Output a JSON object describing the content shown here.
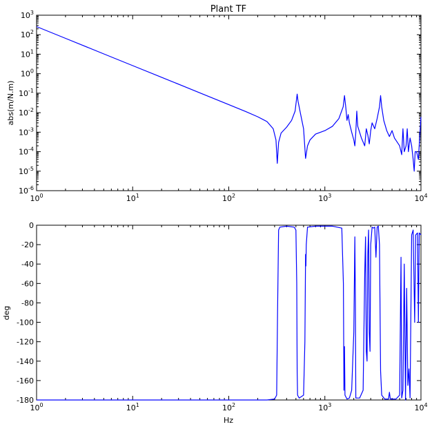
{
  "chart_data": [
    {
      "type": "line",
      "title": "Plant TF",
      "xlabel": "",
      "ylabel": "abs(m/N.m)",
      "xscale": "log",
      "yscale": "log",
      "xlim": [
        1,
        10000
      ],
      "ylim": [
        1e-06,
        1000
      ],
      "x_ticks": [
        {
          "value": 1,
          "base": "10",
          "exp": "0"
        },
        {
          "value": 10,
          "base": "10",
          "exp": "1"
        },
        {
          "value": 100,
          "base": "10",
          "exp": "2"
        },
        {
          "value": 1000,
          "base": "10",
          "exp": "3"
        },
        {
          "value": 10000,
          "base": "10",
          "exp": "4"
        }
      ],
      "y_ticks": [
        {
          "value": 1e-06,
          "base": "10",
          "exp": "-6"
        },
        {
          "value": 1e-05,
          "base": "10",
          "exp": "-5"
        },
        {
          "value": 0.0001,
          "base": "10",
          "exp": "-4"
        },
        {
          "value": 0.001,
          "base": "10",
          "exp": "-3"
        },
        {
          "value": 0.01,
          "base": "10",
          "exp": "-2"
        },
        {
          "value": 0.1,
          "base": "10",
          "exp": "-1"
        },
        {
          "value": 1,
          "base": "10",
          "exp": "0"
        },
        {
          "value": 10,
          "base": "10",
          "exp": "1"
        },
        {
          "value": 100,
          "base": "10",
          "exp": "2"
        },
        {
          "value": 1000,
          "base": "10",
          "exp": "3"
        }
      ],
      "series": [
        {
          "color": "#0000ff",
          "points": [
            [
              1,
              260
            ],
            [
              2,
              65
            ],
            [
              5,
              10.4
            ],
            [
              10,
              2.6
            ],
            [
              20,
              0.65
            ],
            [
              50,
              0.104
            ],
            [
              100,
              0.026
            ],
            [
              150,
              0.0115
            ],
            [
              200,
              0.0062
            ],
            [
              250,
              0.0035
            ],
            [
              290,
              0.0015
            ],
            [
              310,
              0.0004
            ],
            [
              320,
              2.5e-05
            ],
            [
              330,
              0.0003
            ],
            [
              350,
              0.0009
            ],
            [
              400,
              0.0018
            ],
            [
              450,
              0.004
            ],
            [
              490,
              0.012
            ],
            [
              510,
              0.06
            ],
            [
              515,
              0.09
            ],
            [
              525,
              0.04
            ],
            [
              560,
              0.008
            ],
            [
              600,
              0.0015
            ],
            [
              630,
              4.5e-05
            ],
            [
              660,
              0.0002
            ],
            [
              700,
              0.0004
            ],
            [
              800,
              0.0008
            ],
            [
              1000,
              0.0012
            ],
            [
              1200,
              0.002
            ],
            [
              1400,
              0.005
            ],
            [
              1550,
              0.02
            ],
            [
              1600,
              0.075
            ],
            [
              1650,
              0.02
            ],
            [
              1700,
              0.004
            ],
            [
              1750,
              0.008
            ],
            [
              1800,
              0.003
            ],
            [
              1900,
              0.001
            ],
            [
              2000,
              0.0004
            ],
            [
              2050,
              0.0002
            ],
            [
              2100,
              0.001
            ],
            [
              2150,
              0.012
            ],
            [
              2200,
              0.002
            ],
            [
              2400,
              0.0005
            ],
            [
              2600,
              0.0002
            ],
            [
              2700,
              0.0015
            ],
            [
              2800,
              0.0007
            ],
            [
              2900,
              0.00025
            ],
            [
              3000,
              0.0012
            ],
            [
              3100,
              0.003
            ],
            [
              3300,
              0.0015
            ],
            [
              3500,
              0.005
            ],
            [
              3700,
              0.02
            ],
            [
              3800,
              0.075
            ],
            [
              3900,
              0.02
            ],
            [
              4100,
              0.004
            ],
            [
              4400,
              0.0012
            ],
            [
              4700,
              0.0006
            ],
            [
              5000,
              0.0012
            ],
            [
              5300,
              0.0005
            ],
            [
              6000,
              0.0002
            ],
            [
              6300,
              7e-05
            ],
            [
              6500,
              0.0015
            ],
            [
              6700,
              0.0001
            ],
            [
              7000,
              0.0002
            ],
            [
              7200,
              0.0015
            ],
            [
              7400,
              0.0001
            ],
            [
              7700,
              0.0005
            ],
            [
              8000,
              0.0002
            ],
            [
              8300,
              4e-05
            ],
            [
              8500,
              1e-05
            ],
            [
              8700,
              0.0001
            ],
            [
              9000,
              0.0001
            ],
            [
              9400,
              4e-05
            ],
            [
              9700,
              0.0006
            ],
            [
              10000,
              0.006
            ]
          ]
        }
      ]
    },
    {
      "type": "line",
      "title": "",
      "xlabel": "Hz",
      "ylabel": "deg",
      "xscale": "log",
      "yscale": "linear",
      "xlim": [
        1,
        10000
      ],
      "ylim": [
        -180,
        0
      ],
      "x_ticks": [
        {
          "value": 1,
          "base": "10",
          "exp": "0"
        },
        {
          "value": 10,
          "base": "10",
          "exp": "1"
        },
        {
          "value": 100,
          "base": "10",
          "exp": "2"
        },
        {
          "value": 1000,
          "base": "10",
          "exp": "3"
        },
        {
          "value": 10000,
          "base": "10",
          "exp": "4"
        }
      ],
      "y_ticks": [
        {
          "value": 0,
          "label": "0"
        },
        {
          "value": -20,
          "label": "-20"
        },
        {
          "value": -40,
          "label": "-40"
        },
        {
          "value": -60,
          "label": "-60"
        },
        {
          "value": -80,
          "label": "-80"
        },
        {
          "value": -100,
          "label": "-100"
        },
        {
          "value": -120,
          "label": "-120"
        },
        {
          "value": -140,
          "label": "-140"
        },
        {
          "value": -160,
          "label": "-160"
        },
        {
          "value": -180,
          "label": "-180"
        }
      ],
      "series": [
        {
          "color": "#0000ff",
          "points": [
            [
              1,
              -180
            ],
            [
              100,
              -180
            ],
            [
              250,
              -180
            ],
            [
              300,
              -179
            ],
            [
              315,
              -175
            ],
            [
              322,
              -90
            ],
            [
              330,
              -5
            ],
            [
              340,
              -2
            ],
            [
              400,
              -1
            ],
            [
              480,
              -2
            ],
            [
              500,
              -5
            ],
            [
              510,
              -60
            ],
            [
              515,
              -150
            ],
            [
              520,
              -175
            ],
            [
              540,
              -178
            ],
            [
              600,
              -175
            ],
            [
              620,
              -120
            ],
            [
              630,
              -30
            ],
            [
              635,
              -42
            ],
            [
              640,
              -20
            ],
            [
              660,
              -2
            ],
            [
              800,
              -1
            ],
            [
              1200,
              -1
            ],
            [
              1500,
              -3
            ],
            [
              1560,
              -60
            ],
            [
              1580,
              -170
            ],
            [
              1600,
              -125
            ],
            [
              1620,
              -175
            ],
            [
              1700,
              -179
            ],
            [
              1800,
              -178
            ],
            [
              1900,
              -170
            ],
            [
              2000,
              -110
            ],
            [
              2050,
              -12
            ],
            [
              2080,
              -80
            ],
            [
              2100,
              -178
            ],
            [
              2300,
              -178
            ],
            [
              2500,
              -170
            ],
            [
              2600,
              -50
            ],
            [
              2650,
              -12
            ],
            [
              2700,
              -130
            ],
            [
              2750,
              -140
            ],
            [
              2800,
              -30
            ],
            [
              2850,
              -5
            ],
            [
              2900,
              -110
            ],
            [
              2950,
              -130
            ],
            [
              3000,
              -20
            ],
            [
              3100,
              -2
            ],
            [
              3200,
              -3
            ],
            [
              3300,
              -2
            ],
            [
              3400,
              -33
            ],
            [
              3500,
              -2
            ],
            [
              3600,
              -1
            ],
            [
              3700,
              -20
            ],
            [
              3800,
              -150
            ],
            [
              3900,
              -175
            ],
            [
              4200,
              -179
            ],
            [
              4600,
              -179
            ],
            [
              4700,
              -172
            ],
            [
              4800,
              -179
            ],
            [
              5500,
              -179
            ],
            [
              6000,
              -175
            ],
            [
              6200,
              -33
            ],
            [
              6300,
              -178
            ],
            [
              6500,
              -170
            ],
            [
              6700,
              -40
            ],
            [
              6900,
              -180
            ],
            [
              7100,
              -65
            ],
            [
              7300,
              -165
            ],
            [
              7500,
              -148
            ],
            [
              7700,
              -178
            ],
            [
              8000,
              -10
            ],
            [
              8300,
              -5
            ],
            [
              8600,
              -100
            ],
            [
              8800,
              -10
            ],
            [
              9200,
              -8
            ],
            [
              9400,
              -100
            ],
            [
              9600,
              -8
            ],
            [
              10000,
              -10
            ]
          ]
        }
      ]
    }
  ]
}
